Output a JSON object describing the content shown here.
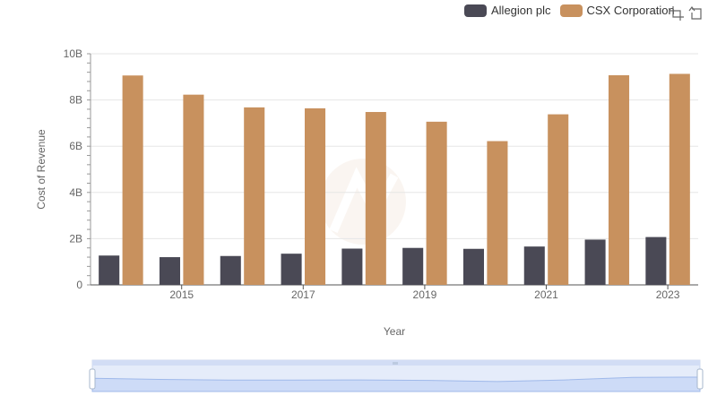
{
  "legend": {
    "items": [
      {
        "label": "Allegion plc",
        "color": "#4a4955"
      },
      {
        "label": "CSX Corporation",
        "color": "#c8915e"
      }
    ]
  },
  "toolbox": {
    "icons": [
      "zoom-icon",
      "restore-icon"
    ]
  },
  "chart_data": {
    "type": "bar",
    "x": [
      2014,
      2015,
      2016,
      2017,
      2018,
      2019,
      2020,
      2021,
      2022,
      2023
    ],
    "xtick_labels": [
      "2015",
      "2017",
      "2019",
      "2021",
      "2023"
    ],
    "xtick_years": [
      2015,
      2017,
      2019,
      2021,
      2023
    ],
    "series": [
      {
        "name": "Allegion plc",
        "color": "#4a4955",
        "values": [
          1.27,
          1.2,
          1.25,
          1.35,
          1.57,
          1.6,
          1.56,
          1.66,
          1.96,
          2.07
        ]
      },
      {
        "name": "CSX Corporation",
        "color": "#c8915e",
        "values": [
          9.06,
          8.23,
          7.68,
          7.64,
          7.48,
          7.06,
          6.22,
          7.38,
          9.07,
          9.13
        ]
      }
    ],
    "xlabel": "Year",
    "ylabel": "Cost of Revenue",
    "ylim": [
      0,
      10
    ],
    "yticks": [
      0,
      2,
      4,
      6,
      8,
      10
    ],
    "ytick_labels": [
      "0",
      "2B",
      "4B",
      "6B",
      "8B",
      "10B"
    ],
    "grid": true,
    "legend_position": "top-right",
    "data_zoom": true
  }
}
